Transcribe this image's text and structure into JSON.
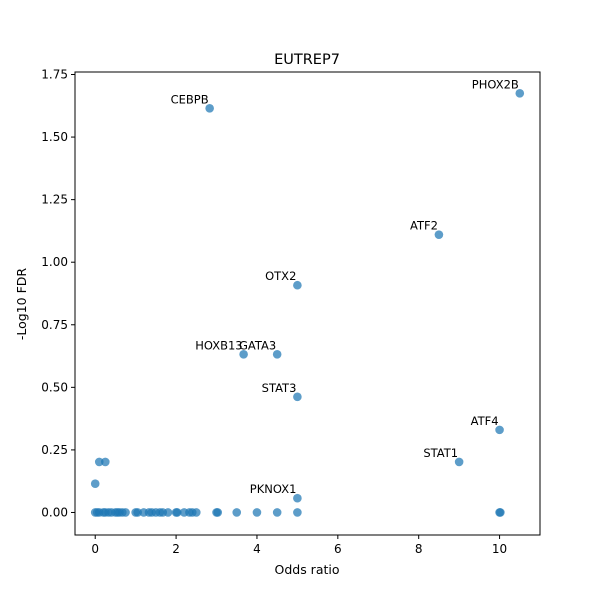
{
  "chart_data": {
    "type": "scatter",
    "title": "EUTREP7",
    "xlabel": "Odds ratio",
    "ylabel": "-Log10 FDR",
    "xlim": [
      -0.5,
      11.0
    ],
    "ylim": [
      -0.09,
      1.76
    ],
    "xticks": [
      0,
      2,
      4,
      6,
      8,
      10
    ],
    "xtick_labels": [
      "0",
      "2",
      "4",
      "6",
      "8",
      "10"
    ],
    "yticks": [
      0.0,
      0.25,
      0.5,
      0.75,
      1.0,
      1.25,
      1.5,
      1.75
    ],
    "ytick_labels": [
      "0.00",
      "0.25",
      "0.50",
      "0.75",
      "1.00",
      "1.25",
      "1.50",
      "1.75"
    ],
    "grid": false,
    "point_color": "#1f77b4",
    "points": [
      {
        "x": 10.5,
        "y": 1.675,
        "label": "PHOX2B"
      },
      {
        "x": 2.83,
        "y": 1.615,
        "label": "CEBPB"
      },
      {
        "x": 8.5,
        "y": 1.11,
        "label": "ATF2"
      },
      {
        "x": 5.0,
        "y": 0.908,
        "label": "OTX2"
      },
      {
        "x": 3.67,
        "y": 0.632,
        "label": "HOXB13"
      },
      {
        "x": 4.5,
        "y": 0.632,
        "label": "GATA3"
      },
      {
        "x": 5.0,
        "y": 0.462,
        "label": "STAT3"
      },
      {
        "x": 10.0,
        "y": 0.33,
        "label": "ATF4"
      },
      {
        "x": 9.0,
        "y": 0.202,
        "label": "STAT1"
      },
      {
        "x": 5.0,
        "y": 0.057,
        "label": "PKNOX1"
      },
      {
        "x": 0.1,
        "y": 0.202
      },
      {
        "x": 0.25,
        "y": 0.202
      },
      {
        "x": 0.0,
        "y": 0.115
      },
      {
        "x": 0.0,
        "y": 0.0
      },
      {
        "x": 0.05,
        "y": 0.0
      },
      {
        "x": 0.1,
        "y": 0.0
      },
      {
        "x": 0.2,
        "y": 0.0
      },
      {
        "x": 0.25,
        "y": 0.0
      },
      {
        "x": 0.33,
        "y": 0.0
      },
      {
        "x": 0.4,
        "y": 0.0
      },
      {
        "x": 0.5,
        "y": 0.0
      },
      {
        "x": 0.55,
        "y": 0.0
      },
      {
        "x": 0.6,
        "y": 0.0
      },
      {
        "x": 0.67,
        "y": 0.0
      },
      {
        "x": 0.75,
        "y": 0.0
      },
      {
        "x": 1.0,
        "y": 0.0
      },
      {
        "x": 1.05,
        "y": 0.0
      },
      {
        "x": 1.2,
        "y": 0.0
      },
      {
        "x": 1.33,
        "y": 0.0
      },
      {
        "x": 1.4,
        "y": 0.0
      },
      {
        "x": 1.5,
        "y": 0.0
      },
      {
        "x": 1.6,
        "y": 0.0
      },
      {
        "x": 1.67,
        "y": 0.0
      },
      {
        "x": 1.8,
        "y": 0.0
      },
      {
        "x": 2.0,
        "y": 0.0
      },
      {
        "x": 2.03,
        "y": 0.0
      },
      {
        "x": 2.2,
        "y": 0.0
      },
      {
        "x": 2.33,
        "y": 0.0
      },
      {
        "x": 2.4,
        "y": 0.0
      },
      {
        "x": 2.5,
        "y": 0.0
      },
      {
        "x": 3.0,
        "y": 0.0
      },
      {
        "x": 3.03,
        "y": 0.0
      },
      {
        "x": 3.5,
        "y": 0.0
      },
      {
        "x": 4.0,
        "y": 0.0
      },
      {
        "x": 4.5,
        "y": 0.0
      },
      {
        "x": 5.0,
        "y": 0.0
      },
      {
        "x": 10.0,
        "y": 0.0
      },
      {
        "x": 10.02,
        "y": 0.0
      }
    ]
  }
}
